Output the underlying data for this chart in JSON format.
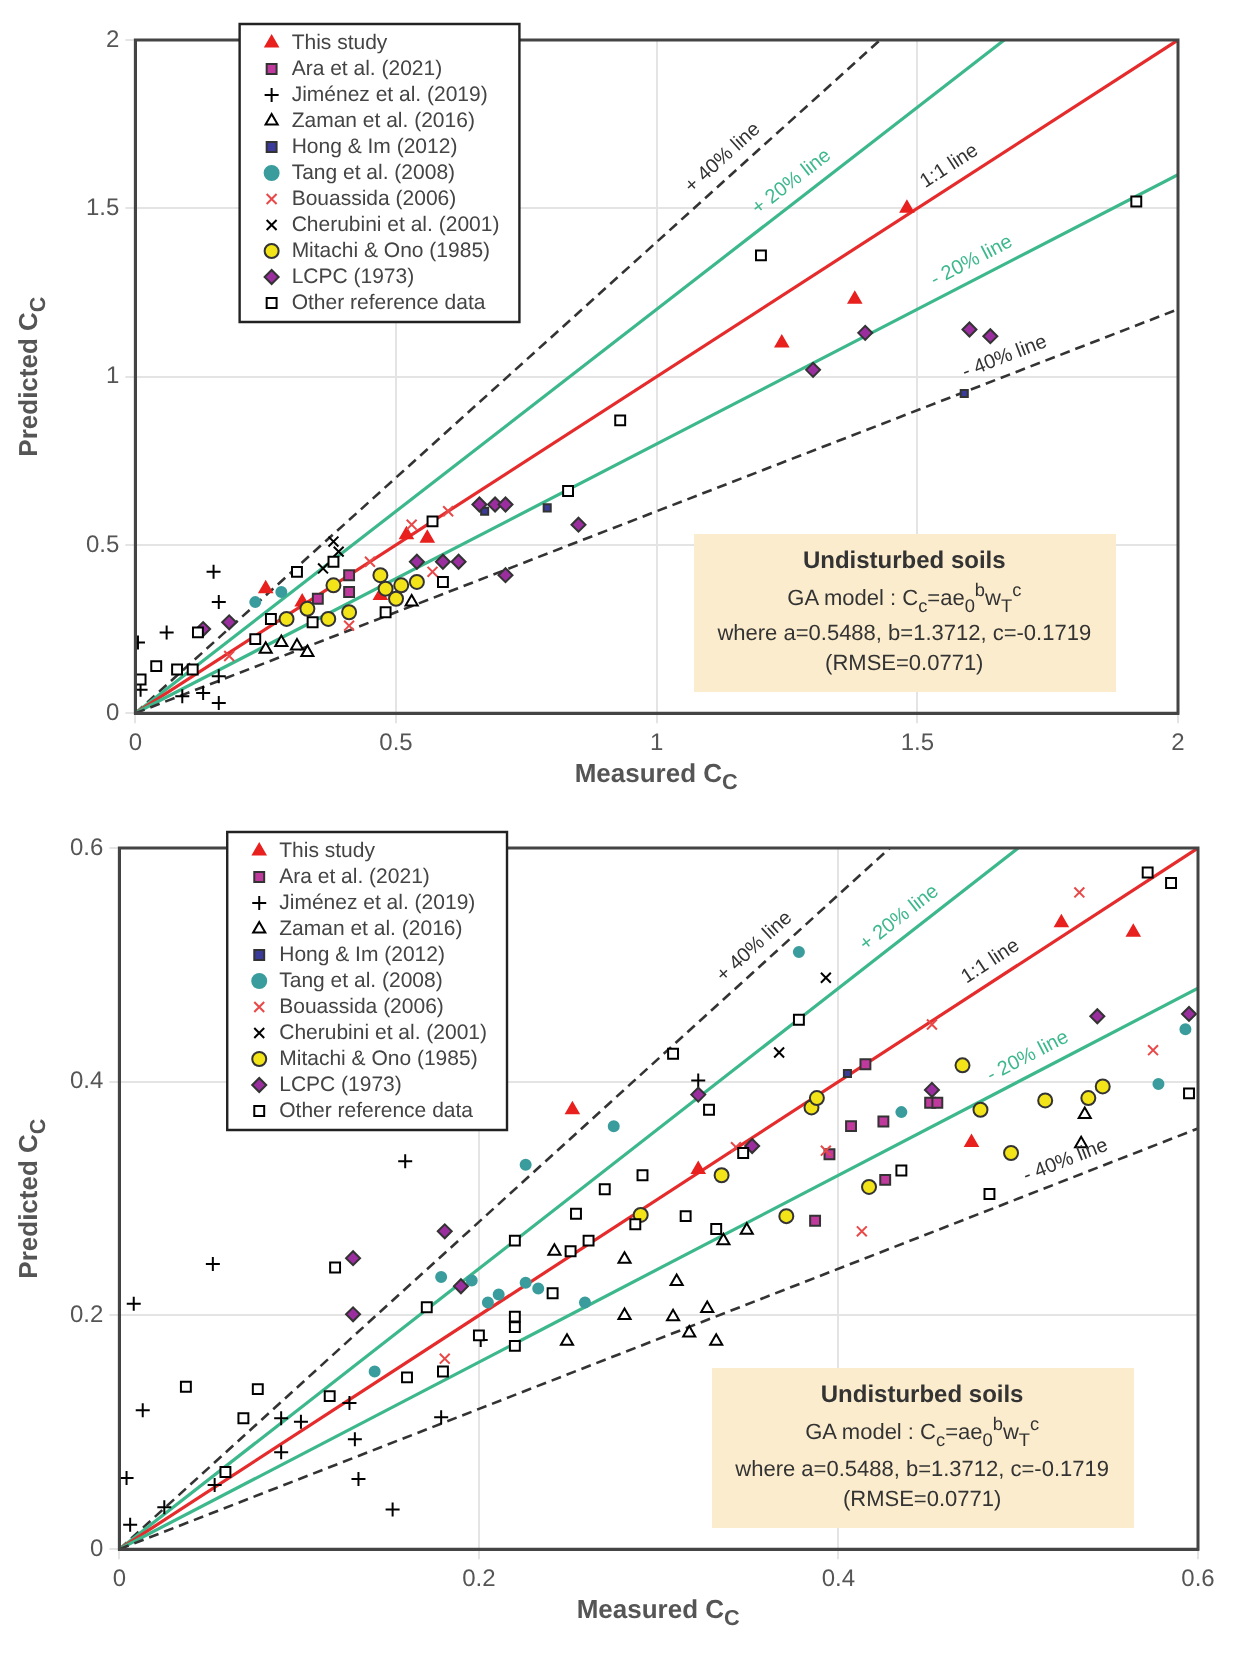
{
  "chart_data": [
    {
      "type": "scatter",
      "xlabel": "Measured C$_{C}$",
      "ylabel": "Predicted C$_{C}$",
      "xlim": [
        0,
        2
      ],
      "ylim": [
        0,
        2
      ],
      "xticks": [
        0,
        0.5,
        1,
        1.5,
        2
      ],
      "yticks": [
        0,
        0.5,
        1,
        1.5,
        2
      ],
      "grid": true,
      "legend": "top left",
      "annotations": [
        "Undisturbed soils",
        "GA model : C$_{c}$=ae$_{0}$$^{b}$w$_{T}$$^{c}$",
        "where a=0.5488, b=1.3712, c=-0.1719",
        "(RMSE=0.0771)",
        {
          "text": "+ 40% line",
          "x": 1.15,
          "y": 1.61
        },
        {
          "text": "+ 20% line",
          "x": 1.28,
          "y": 1.536
        },
        {
          "text": "1:1 line",
          "x": 1.58,
          "y": 1.58
        },
        {
          "text": "- 20% line",
          "x": 1.62,
          "y": 1.296
        },
        {
          "text": "- 40% line",
          "x": 1.68,
          "y": 1.008
        }
      ],
      "series": [
        {
          "type": "line",
          "x": [
            0,
            1.4286
          ],
          "values": [
            0,
            2
          ],
          "color": "#333333",
          "line_style": "dashed"
        },
        {
          "type": "line",
          "x": [
            0,
            1.6667
          ],
          "values": [
            0,
            2
          ],
          "color": "#3cb88c",
          "line_style": "solid"
        },
        {
          "type": "line",
          "x": [
            0,
            2
          ],
          "values": [
            0,
            2
          ],
          "color": "#e52b2b",
          "line_style": "solid"
        },
        {
          "type": "line",
          "x": [
            0,
            2
          ],
          "values": [
            0,
            1.6
          ],
          "color": "#3cb88c",
          "line_style": "solid"
        },
        {
          "type": "line",
          "x": [
            0,
            2
          ],
          "values": [
            0,
            1.2
          ],
          "color": "#333333",
          "line_style": "dashed"
        },
        {
          "name": "This study",
          "marker": "triangle",
          "color": "#e8201e",
          "x": [
            1.48,
            1.38,
            1.24,
            0.25,
            0.32,
            0.47,
            0.52,
            0.56
          ],
          "values": [
            1.5,
            1.23,
            1.1,
            0.37,
            0.33,
            0.35,
            0.53,
            0.52
          ]
        },
        {
          "name": "Ara et al. (2021)",
          "marker": "square",
          "color": "#c03a9e",
          "x": [
            0.41,
            0.41,
            0.35
          ],
          "values": [
            0.41,
            0.36,
            0.34
          ]
        },
        {
          "name": "Jiménez et al. (2019)",
          "marker": "cross",
          "color": "#000000",
          "x": [
            0.15,
            0.16,
            0.06,
            0.005,
            0.16,
            0.13,
            0.09,
            0.01,
            0.16
          ],
          "values": [
            0.42,
            0.33,
            0.24,
            0.21,
            0.03,
            0.06,
            0.05,
            0.07,
            0.11
          ]
        },
        {
          "name": "Zaman et al. (2016)",
          "marker": "triangle",
          "color": "#000000",
          "x": [
            0.28,
            0.33,
            0.31,
            0.25,
            0.53
          ],
          "values": [
            0.21,
            0.18,
            0.2,
            0.19,
            0.33
          ]
        },
        {
          "name": "Hong & Im (2012)",
          "marker": "square",
          "color": "#3a3a9a",
          "x": [
            0.67,
            0.79,
            1.59
          ],
          "values": [
            0.6,
            0.61,
            0.95
          ]
        },
        {
          "name": "Tang et al. (2008)",
          "marker": "circle",
          "color": "#3a9c9c",
          "x": [
            0.23,
            0.28
          ],
          "values": [
            0.33,
            0.36
          ]
        },
        {
          "name": "Bouassida (2006)",
          "marker": "x",
          "color": "#e84848",
          "x": [
            0.53,
            0.6,
            0.45,
            0.57,
            0.41,
            0.18
          ],
          "values": [
            0.56,
            0.6,
            0.45,
            0.42,
            0.26,
            0.17
          ]
        },
        {
          "name": "Cherubini et al. (2001)",
          "marker": "x",
          "color": "#000000",
          "x": [
            0.38,
            0.39,
            0.36
          ],
          "values": [
            0.51,
            0.48,
            0.43
          ]
        },
        {
          "name": "Mitachi & Ono (1985)",
          "marker": "circle",
          "color": "#f2e418",
          "x": [
            0.47,
            0.48,
            0.51,
            0.54,
            0.5,
            0.41,
            0.37,
            0.38,
            0.33,
            0.29
          ],
          "values": [
            0.41,
            0.37,
            0.38,
            0.39,
            0.34,
            0.3,
            0.28,
            0.38,
            0.31,
            0.28
          ]
        },
        {
          "name": "LCPC (1973)",
          "marker": "diamond",
          "color": "#9a2e9e",
          "x": [
            0.66,
            0.69,
            0.71,
            0.85,
            0.71,
            0.62,
            0.59,
            0.54,
            0.13,
            0.18,
            1.3,
            1.4,
            1.6,
            1.64
          ],
          "values": [
            0.62,
            0.62,
            0.62,
            0.56,
            0.41,
            0.45,
            0.45,
            0.45,
            0.25,
            0.27,
            1.02,
            1.13,
            1.14,
            1.12
          ]
        },
        {
          "name": "Other reference data",
          "marker": "square",
          "color": "#000000",
          "x": [
            1.2,
            0.93,
            0.83,
            1.92,
            0.57,
            0.59,
            0.48,
            0.31,
            0.38,
            0.12,
            0.04,
            0.08,
            0.11,
            0.01,
            0.23,
            0.26,
            0.34
          ],
          "values": [
            1.36,
            0.87,
            0.66,
            1.52,
            0.57,
            0.39,
            0.3,
            0.42,
            0.45,
            0.24,
            0.14,
            0.13,
            0.13,
            0.1,
            0.22,
            0.28,
            0.27
          ]
        }
      ]
    },
    {
      "type": "scatter",
      "xlabel": "Measured C$_{C}$",
      "ylabel": "Predicted C$_{C}$",
      "xlim": [
        0,
        0.6
      ],
      "ylim": [
        0,
        0.6
      ],
      "xticks": [
        0,
        0.2,
        0.4,
        0.6
      ],
      "yticks": [
        0,
        0.2,
        0.4,
        0.6
      ],
      "grid": true,
      "legend": "top left",
      "annotations": [
        "Undisturbed soils",
        "GA model : C$_{c}$=ae$_{0}$$^{b}$w$_{T}$$^{c}$",
        "where a=0.5488, b=1.3712, c=-0.1719",
        "(RMSE=0.0771)",
        {
          "text": "+ 40% line",
          "x": 0.36,
          "y": 0.504
        },
        {
          "text": "+ 20% line",
          "x": 0.44,
          "y": 0.528
        },
        {
          "text": "1:1 line",
          "x": 0.49,
          "y": 0.49
        },
        {
          "text": "- 20% line",
          "x": 0.51,
          "y": 0.408
        },
        {
          "text": "- 40% line",
          "x": 0.53,
          "y": 0.318
        }
      ],
      "series": [
        {
          "type": "line",
          "x": [
            0,
            0.4286
          ],
          "values": [
            0,
            0.6
          ],
          "color": "#333333",
          "line_style": "dashed"
        },
        {
          "type": "line",
          "x": [
            0,
            0.5
          ],
          "values": [
            0,
            0.6
          ],
          "color": "#3cb88c",
          "line_style": "solid"
        },
        {
          "type": "line",
          "x": [
            0,
            0.6
          ],
          "values": [
            0,
            0.6
          ],
          "color": "#e52b2b",
          "line_style": "solid"
        },
        {
          "type": "line",
          "x": [
            0,
            0.6
          ],
          "values": [
            0,
            0.48
          ],
          "color": "#3cb88c",
          "line_style": "solid"
        },
        {
          "type": "line",
          "x": [
            0,
            0.6
          ],
          "values": [
            0,
            0.36
          ],
          "color": "#333333",
          "line_style": "dashed"
        },
        {
          "name": "This study",
          "marker": "triangle",
          "color": "#e8201e",
          "x": [
            0.252,
            0.322,
            0.474,
            0.524,
            0.564
          ],
          "values": [
            0.376,
            0.325,
            0.348,
            0.536,
            0.528
          ]
        },
        {
          "name": "Ara et al. (2021)",
          "marker": "square",
          "color": "#c03a9e",
          "x": [
            0.415,
            0.407,
            0.425,
            0.395,
            0.387,
            0.426,
            0.451,
            0.455
          ],
          "values": [
            0.415,
            0.362,
            0.366,
            0.338,
            0.281,
            0.316,
            0.382,
            0.382
          ]
        },
        {
          "name": "Jiménez et al. (2019)",
          "marker": "cross",
          "color": "#000000",
          "x": [
            0.159,
            0.052,
            0.008,
            0.013,
            0.004,
            0.006,
            0.025,
            0.053,
            0.09,
            0.09,
            0.101,
            0.128,
            0.131,
            0.133,
            0.152,
            0.179,
            0.201,
            0.322
          ],
          "values": [
            0.332,
            0.244,
            0.21,
            0.119,
            0.061,
            0.021,
            0.036,
            0.055,
            0.083,
            0.112,
            0.109,
            0.125,
            0.094,
            0.06,
            0.034,
            0.113,
            0.179,
            0.401
          ]
        },
        {
          "name": "Zaman et al. (2016)",
          "marker": "triangle",
          "color": "#000000",
          "x": [
            0.242,
            0.281,
            0.281,
            0.249,
            0.31,
            0.308,
            0.327,
            0.317,
            0.332,
            0.336,
            0.349,
            0.537,
            0.535
          ],
          "values": [
            0.255,
            0.248,
            0.2,
            0.178,
            0.229,
            0.199,
            0.206,
            0.185,
            0.178,
            0.264,
            0.273,
            0.372,
            0.347
          ]
        },
        {
          "name": "Hong & Im (2012)",
          "marker": "square",
          "color": "#3a3a9a",
          "x": [
            0.405
          ],
          "values": [
            0.407
          ]
        },
        {
          "name": "Tang et al. (2008)",
          "marker": "circle",
          "color": "#3a9c9c",
          "x": [
            0.275,
            0.226,
            0.179,
            0.196,
            0.205,
            0.211,
            0.226,
            0.233,
            0.259,
            0.142,
            0.378,
            0.435,
            0.578,
            0.593
          ],
          "values": [
            0.362,
            0.329,
            0.233,
            0.23,
            0.211,
            0.218,
            0.228,
            0.223,
            0.211,
            0.152,
            0.511,
            0.374,
            0.398,
            0.445
          ]
        },
        {
          "name": "Bouassida (2006)",
          "marker": "x",
          "color": "#e84848",
          "x": [
            0.181,
            0.452,
            0.534,
            0.575,
            0.413,
            0.393,
            0.343
          ],
          "values": [
            0.163,
            0.449,
            0.562,
            0.427,
            0.272,
            0.341,
            0.344
          ]
        },
        {
          "name": "Cherubini et al. (2001)",
          "marker": "x",
          "color": "#000000",
          "x": [
            0.393,
            0.367
          ],
          "values": [
            0.489,
            0.425
          ]
        },
        {
          "name": "Mitachi & Ono (1985)",
          "marker": "circle",
          "color": "#f2e418",
          "x": [
            0.29,
            0.385,
            0.388,
            0.335,
            0.371,
            0.417,
            0.469,
            0.479,
            0.496,
            0.515,
            0.539,
            0.547
          ],
          "values": [
            0.286,
            0.378,
            0.386,
            0.32,
            0.285,
            0.31,
            0.414,
            0.376,
            0.339,
            0.384,
            0.386,
            0.396
          ]
        },
        {
          "name": "LCPC (1973)",
          "marker": "diamond",
          "color": "#9a2e9e",
          "x": [
            0.181,
            0.13,
            0.13,
            0.19,
            0.322,
            0.352,
            0.452,
            0.544,
            0.595
          ],
          "values": [
            0.272,
            0.249,
            0.201,
            0.225,
            0.389,
            0.345,
            0.393,
            0.456,
            0.458
          ]
        },
        {
          "name": "Other reference data",
          "marker": "square",
          "color": "#000000",
          "x": [
            0.037,
            0.077,
            0.069,
            0.059,
            0.117,
            0.12,
            0.16,
            0.171,
            0.2,
            0.22,
            0.22,
            0.22,
            0.22,
            0.18,
            0.241,
            0.251,
            0.254,
            0.261,
            0.27,
            0.287,
            0.291,
            0.308,
            0.378,
            0.328,
            0.315,
            0.332,
            0.347,
            0.435,
            0.484,
            0.572,
            0.585,
            0.595
          ],
          "values": [
            0.139,
            0.137,
            0.112,
            0.066,
            0.131,
            0.241,
            0.147,
            0.207,
            0.183,
            0.264,
            0.199,
            0.19,
            0.174,
            0.152,
            0.219,
            0.255,
            0.287,
            0.264,
            0.308,
            0.278,
            0.32,
            0.424,
            0.453,
            0.376,
            0.285,
            0.274,
            0.339,
            0.324,
            0.304,
            0.579,
            0.57,
            0.39
          ]
        }
      ]
    }
  ]
}
